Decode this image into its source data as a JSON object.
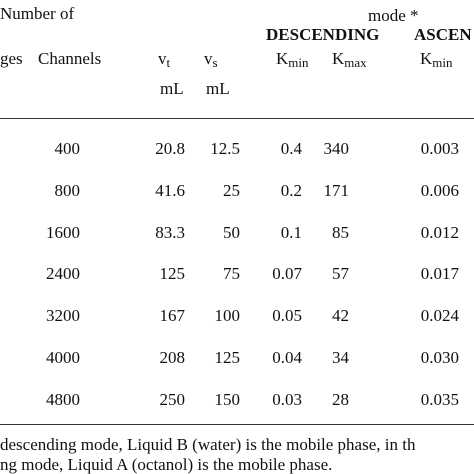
{
  "header": {
    "group_left": "Number of",
    "group_right": "mode *",
    "descending": "DESCENDING",
    "ascending": "ASCEN",
    "columns": [
      {
        "main": "ges"
      },
      {
        "main": "Channels"
      },
      {
        "main": "v",
        "sub": "t",
        "unit": "mL"
      },
      {
        "main": "v",
        "sub": "s",
        "unit": "mL"
      },
      {
        "main": "K",
        "sub": "min"
      },
      {
        "main": "K",
        "sub": "max"
      },
      {
        "main": "K",
        "sub": "min"
      }
    ]
  },
  "table": {
    "rows": [
      [
        "400",
        "20.8",
        "12.5",
        "0.4",
        "340",
        "0.003"
      ],
      [
        "800",
        "41.6",
        "25",
        "0.2",
        "171",
        "0.006"
      ],
      [
        "1600",
        "83.3",
        "50",
        "0.1",
        "85",
        "0.012"
      ],
      [
        "2400",
        "125",
        "75",
        "0.07",
        "57",
        "0.017"
      ],
      [
        "3200",
        "167",
        "100",
        "0.05",
        "42",
        "0.024"
      ],
      [
        "4000",
        "208",
        "125",
        "0.04",
        "34",
        "0.030"
      ],
      [
        "4800",
        "250",
        "150",
        "0.03",
        "28",
        "0.035"
      ]
    ]
  },
  "footnote": [
    "descending mode, Liquid B (water) is the mobile phase, in th",
    "ng mode, Liquid A (octanol) is the mobile phase."
  ]
}
